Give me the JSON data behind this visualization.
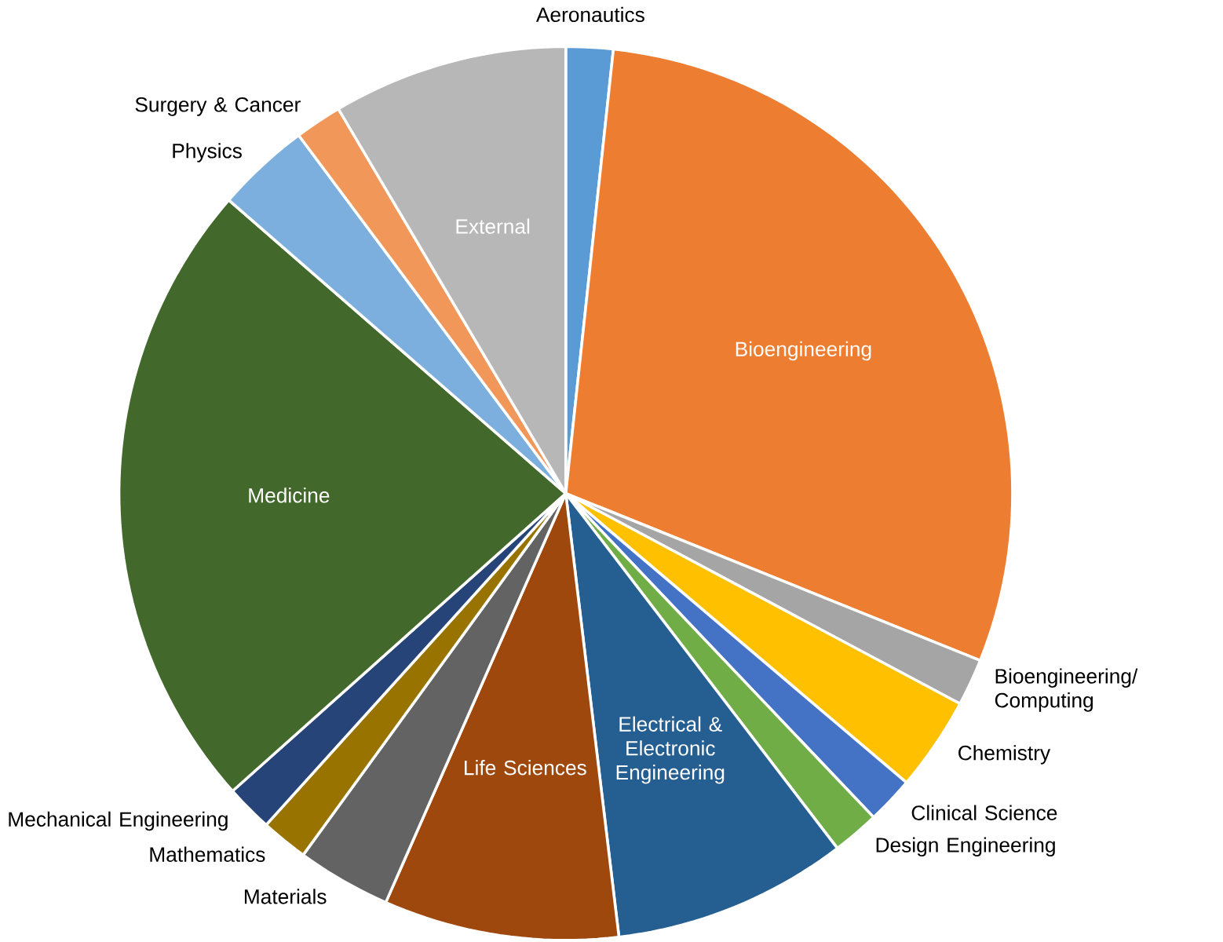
{
  "chart_data": {
    "type": "pie",
    "categories": [
      "Aeronautics",
      "Bioengineering",
      "Bioengineering/ Computing",
      "Chemistry",
      "Clinical Science",
      "Design Engineering",
      "Electrical & Electronic Engineering",
      "Life Sciences",
      "Materials",
      "Mathematics",
      "Mechanical Engineering",
      "Medicine",
      "Physics",
      "Surgery & Cancer",
      "External"
    ],
    "values": [
      1.7,
      29.4,
      1.7,
      3.4,
      1.7,
      1.7,
      8.5,
      8.5,
      3.4,
      1.7,
      1.7,
      23.0,
      3.4,
      1.7,
      8.5
    ],
    "colors": [
      "#5b9bd5",
      "#ed7d31",
      "#a5a5a5",
      "#ffc000",
      "#4472c4",
      "#70ad47",
      "#255e91",
      "#9e480e",
      "#636363",
      "#997300",
      "#264478",
      "#43682b",
      "#7cafdd",
      "#f1975a",
      "#b7b7b7"
    ]
  }
}
